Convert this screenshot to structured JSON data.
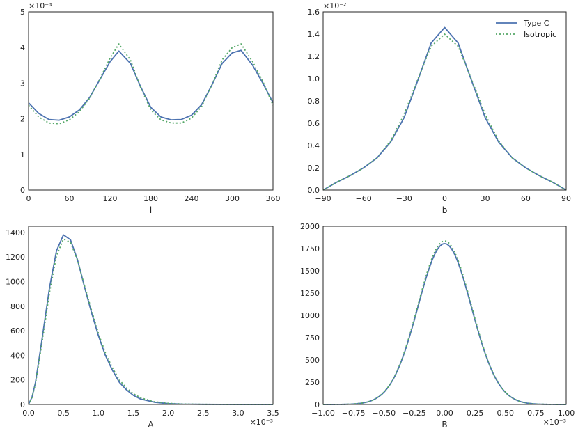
{
  "colors": {
    "type_c": "#4c72b0",
    "isotropic": "#55a868",
    "axis": "#262626"
  },
  "legend": {
    "position": "top-right",
    "entries": [
      "Type C",
      "Isotropic"
    ]
  },
  "chart_data": [
    {
      "type": "line",
      "xlabel": "l",
      "ylabel": "",
      "xlim": [
        0,
        360
      ],
      "ylim": [
        0,
        5
      ],
      "offset_text": "×10⁻³",
      "x_ticks": [
        "0",
        "60",
        "120",
        "180",
        "240",
        "300",
        "360"
      ],
      "y_ticks": [
        "0",
        "1",
        "2",
        "3",
        "4",
        "5"
      ],
      "x": [
        0,
        15,
        30,
        45,
        60,
        75,
        90,
        105,
        120,
        133,
        150,
        165,
        180,
        195,
        210,
        225,
        240,
        255,
        270,
        285,
        300,
        313,
        330,
        345,
        360
      ],
      "series": [
        {
          "name": "Type C",
          "values": [
            2.45,
            2.15,
            1.98,
            1.96,
            2.05,
            2.25,
            2.6,
            3.1,
            3.6,
            3.9,
            3.55,
            2.9,
            2.32,
            2.05,
            1.97,
            1.98,
            2.1,
            2.4,
            2.95,
            3.55,
            3.85,
            3.92,
            3.5,
            3.0,
            2.45
          ]
        },
        {
          "name": "Isotropic",
          "values": [
            2.38,
            2.05,
            1.88,
            1.86,
            1.97,
            2.2,
            2.58,
            3.12,
            3.7,
            4.1,
            3.65,
            2.88,
            2.25,
            1.97,
            1.88,
            1.88,
            2.02,
            2.35,
            2.95,
            3.65,
            4.0,
            4.1,
            3.6,
            3.05,
            2.38
          ]
        }
      ]
    },
    {
      "type": "line",
      "xlabel": "b",
      "ylabel": "",
      "xlim": [
        -90,
        90
      ],
      "ylim": [
        0,
        0.016
      ],
      "offset_text": "×10⁻²",
      "x_ticks": [
        "−90",
        "−60",
        "−30",
        "0",
        "30",
        "60",
        "90"
      ],
      "y_ticks": [
        "0.0",
        "0.2",
        "0.4",
        "0.6",
        "0.8",
        "1.0",
        "1.2",
        "1.4",
        "1.6"
      ],
      "x": [
        -90,
        -80,
        -70,
        -60,
        -50,
        -40,
        -30,
        -20,
        -10,
        0,
        10,
        20,
        30,
        40,
        50,
        60,
        70,
        80,
        90
      ],
      "series": [
        {
          "name": "Type C",
          "values": [
            0.0,
            0.0007,
            0.0013,
            0.002,
            0.0029,
            0.0043,
            0.0065,
            0.0098,
            0.0132,
            0.0146,
            0.0132,
            0.0098,
            0.0065,
            0.0043,
            0.0029,
            0.002,
            0.0013,
            0.0007,
            0.0
          ]
        },
        {
          "name": "Isotropic",
          "values": [
            0.0,
            0.0007,
            0.0013,
            0.002,
            0.0029,
            0.0044,
            0.0068,
            0.0099,
            0.0129,
            0.014,
            0.0129,
            0.0099,
            0.0068,
            0.0044,
            0.0029,
            0.002,
            0.0013,
            0.0007,
            0.0
          ]
        }
      ]
    },
    {
      "type": "line",
      "xlabel": "A",
      "ylabel": "",
      "xlim": [
        0,
        0.0035
      ],
      "ylim": [
        0,
        1450
      ],
      "offset_text": "×10⁻³",
      "x_ticks": [
        "0.0",
        "0.5",
        "1.0",
        "1.5",
        "2.0",
        "2.5",
        "3.0",
        "3.5"
      ],
      "y_ticks": [
        "0",
        "200",
        "400",
        "600",
        "800",
        "1000",
        "1200",
        "1400"
      ],
      "x": [
        0,
        5e-05,
        0.0001,
        0.0002,
        0.0003,
        0.0004,
        0.0005,
        0.0006,
        0.0007,
        0.0008,
        0.0009,
        0.001,
        0.0011,
        0.0012,
        0.0013,
        0.0014,
        0.0015,
        0.0016,
        0.0018,
        0.002,
        0.0022,
        0.0025,
        0.003,
        0.0035
      ],
      "series": [
        {
          "name": "Type C",
          "values": [
            0,
            60,
            180,
            560,
            950,
            1250,
            1380,
            1340,
            1180,
            960,
            750,
            560,
            400,
            280,
            180,
            120,
            75,
            45,
            18,
            7,
            3,
            1,
            0,
            0
          ]
        },
        {
          "name": "Isotropic",
          "values": [
            0,
            55,
            170,
            530,
            910,
            1210,
            1345,
            1320,
            1175,
            970,
            770,
            580,
            420,
            300,
            200,
            135,
            88,
            55,
            22,
            9,
            4,
            1,
            0,
            0
          ]
        }
      ]
    },
    {
      "type": "line",
      "xlabel": "B",
      "ylabel": "",
      "xlim": [
        -0.001,
        0.001
      ],
      "ylim": [
        0,
        2000
      ],
      "offset_text": "×10⁻³",
      "x_ticks": [
        "−1.00",
        "−0.75",
        "−0.50",
        "−0.25",
        "0.00",
        "0.25",
        "0.50",
        "0.75",
        "1.00"
      ],
      "y_ticks": [
        "0",
        "250",
        "500",
        "750",
        "1000",
        "1250",
        "1500",
        "1750",
        "2000"
      ],
      "sigma": 0.00022,
      "series": [
        {
          "name": "Type C",
          "peak": 1805
        },
        {
          "name": "Isotropic",
          "peak": 1835
        }
      ]
    }
  ]
}
